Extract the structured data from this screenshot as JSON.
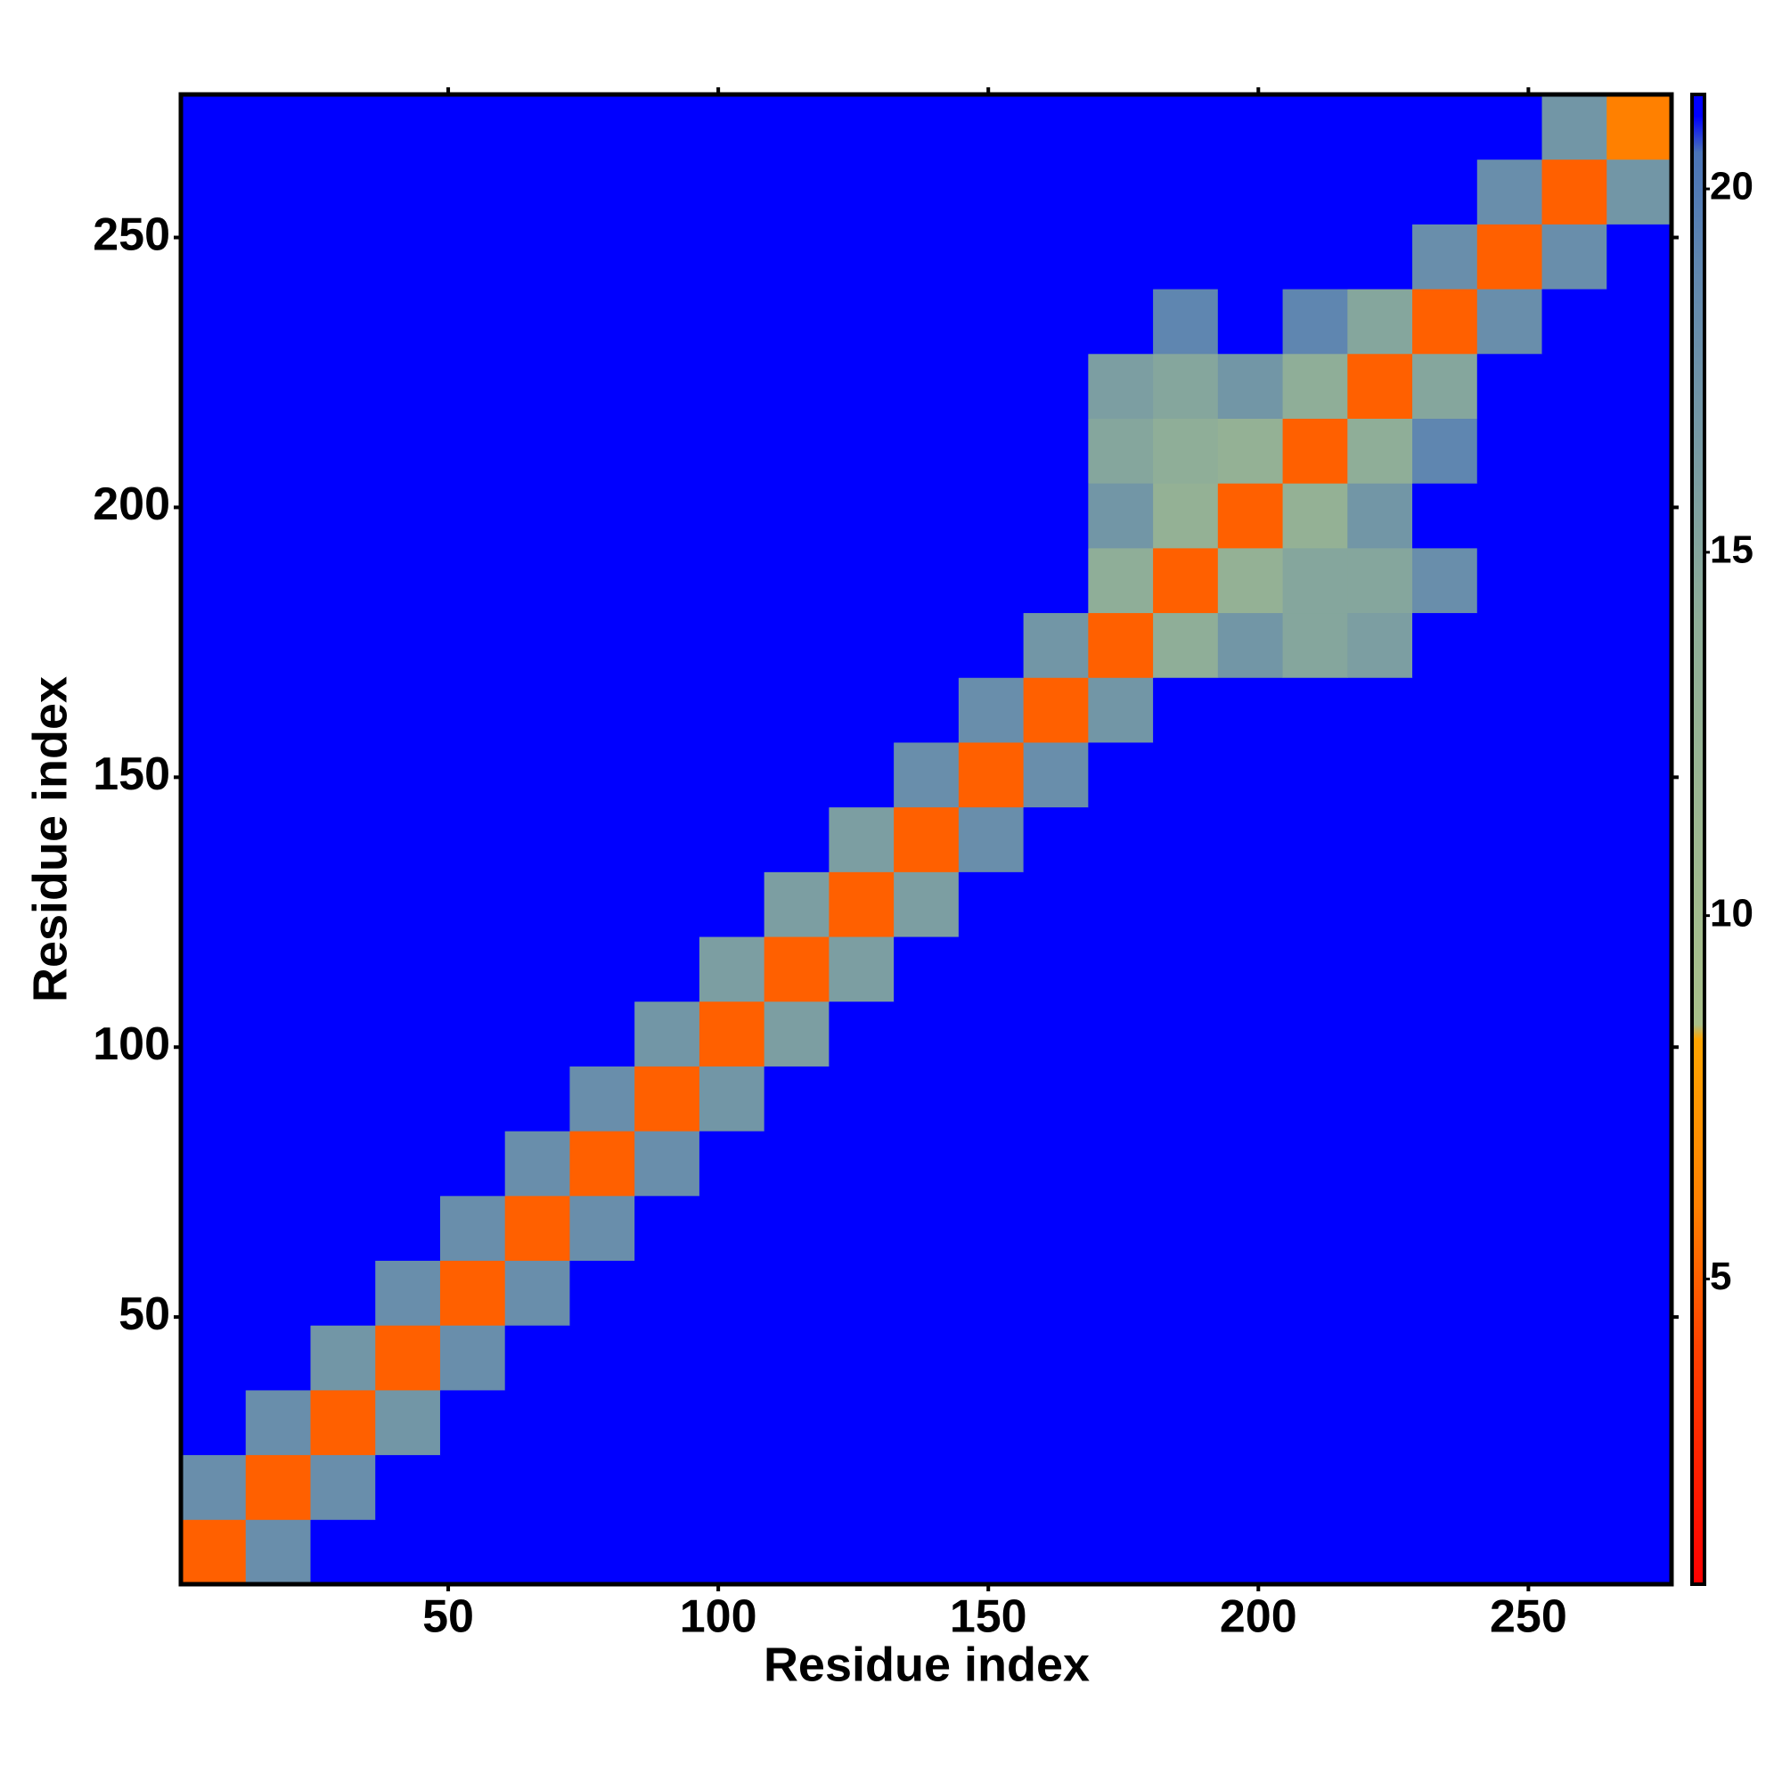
{
  "chart_data": {
    "type": "heatmap",
    "xlabel": "Residue index",
    "ylabel": "Residue index",
    "xlim": [
      0.5,
      276.5
    ],
    "ylim": [
      0.5,
      276.5
    ],
    "xticks": [
      50,
      100,
      150,
      200,
      250
    ],
    "yticks": [
      50,
      100,
      150,
      200,
      250
    ],
    "x_bins": [
      0.5,
      12.5,
      24.5,
      36.5,
      48.5,
      60.5,
      72.5,
      84.5,
      96.5,
      108.5,
      120.5,
      132.5,
      144.5,
      156.5,
      168.5,
      180.5,
      192.5,
      204.5,
      216.5,
      228.5,
      240.5,
      252.5,
      264.5,
      276.5
    ],
    "y_bins": [
      0.5,
      12.5,
      24.5,
      36.5,
      48.5,
      60.5,
      72.5,
      84.5,
      96.5,
      108.5,
      120.5,
      132.5,
      144.5,
      156.5,
      168.5,
      180.5,
      192.5,
      204.5,
      216.5,
      228.5,
      240.5,
      252.5,
      264.5,
      276.5
    ],
    "z": [
      [
        5,
        18,
        21,
        21,
        21,
        21,
        21,
        21,
        21,
        21,
        21,
        21,
        21,
        21,
        21,
        21,
        21,
        21,
        21,
        21,
        21,
        21,
        21
      ],
      [
        18,
        5,
        18,
        21,
        21,
        21,
        21,
        21,
        21,
        21,
        21,
        21,
        21,
        21,
        21,
        21,
        21,
        21,
        21,
        21,
        21,
        21,
        21
      ],
      [
        21,
        18,
        5,
        17,
        21,
        21,
        21,
        21,
        21,
        21,
        21,
        21,
        21,
        21,
        21,
        21,
        21,
        21,
        21,
        21,
        21,
        21,
        21
      ],
      [
        21,
        21,
        17,
        5,
        18,
        21,
        21,
        21,
        21,
        21,
        21,
        21,
        21,
        21,
        21,
        21,
        21,
        21,
        21,
        21,
        21,
        21,
        21
      ],
      [
        21,
        21,
        21,
        18,
        5,
        18,
        21,
        21,
        21,
        21,
        21,
        21,
        21,
        21,
        21,
        21,
        21,
        21,
        21,
        21,
        21,
        21,
        21
      ],
      [
        21,
        21,
        21,
        21,
        18,
        5,
        18,
        21,
        21,
        21,
        21,
        21,
        21,
        21,
        21,
        21,
        21,
        21,
        21,
        21,
        21,
        21,
        21
      ],
      [
        21,
        21,
        21,
        21,
        21,
        18,
        5,
        18,
        21,
        21,
        21,
        21,
        21,
        21,
        21,
        21,
        21,
        21,
        21,
        21,
        21,
        21,
        21
      ],
      [
        21,
        21,
        21,
        21,
        21,
        21,
        18,
        5,
        17,
        21,
        21,
        21,
        21,
        21,
        21,
        21,
        21,
        21,
        21,
        21,
        21,
        21,
        21
      ],
      [
        21,
        21,
        21,
        21,
        21,
        21,
        21,
        17,
        5,
        16,
        21,
        21,
        21,
        21,
        21,
        21,
        21,
        21,
        21,
        21,
        21,
        21,
        21
      ],
      [
        21,
        21,
        21,
        21,
        21,
        21,
        21,
        21,
        16,
        5,
        16,
        21,
        21,
        21,
        21,
        21,
        21,
        21,
        21,
        21,
        21,
        21,
        21
      ],
      [
        21,
        21,
        21,
        21,
        21,
        21,
        21,
        21,
        21,
        16,
        5,
        16,
        21,
        21,
        21,
        21,
        21,
        21,
        21,
        21,
        21,
        21,
        21
      ],
      [
        21,
        21,
        21,
        21,
        21,
        21,
        21,
        21,
        21,
        21,
        16,
        5,
        18,
        21,
        21,
        21,
        21,
        21,
        21,
        21,
        21,
        21,
        21
      ],
      [
        21,
        21,
        21,
        21,
        21,
        21,
        21,
        21,
        21,
        21,
        21,
        18,
        5,
        18,
        21,
        21,
        21,
        21,
        21,
        21,
        21,
        21,
        21
      ],
      [
        21,
        21,
        21,
        21,
        21,
        21,
        21,
        21,
        21,
        21,
        21,
        21,
        18,
        5,
        17,
        21,
        21,
        21,
        21,
        21,
        21,
        21,
        21
      ],
      [
        21,
        21,
        21,
        21,
        21,
        21,
        21,
        21,
        21,
        21,
        21,
        21,
        21,
        17,
        5,
        14,
        17,
        15,
        16,
        21,
        21,
        21,
        21
      ],
      [
        21,
        21,
        21,
        21,
        21,
        21,
        21,
        21,
        21,
        21,
        21,
        21,
        21,
        21,
        14,
        5,
        13,
        15,
        15,
        18,
        21,
        21,
        21
      ],
      [
        21,
        21,
        21,
        21,
        21,
        21,
        21,
        21,
        21,
        21,
        21,
        21,
        21,
        21,
        17,
        13,
        5,
        13,
        17,
        21,
        21,
        21,
        21
      ],
      [
        21,
        21,
        21,
        21,
        21,
        21,
        21,
        21,
        21,
        21,
        21,
        21,
        21,
        21,
        15,
        14,
        13,
        5,
        14,
        19,
        21,
        21,
        21
      ],
      [
        21,
        21,
        21,
        21,
        21,
        21,
        21,
        21,
        21,
        21,
        21,
        21,
        21,
        21,
        16,
        15,
        17,
        14,
        5,
        15,
        21,
        21,
        21
      ],
      [
        21,
        21,
        21,
        21,
        21,
        21,
        21,
        21,
        21,
        21,
        21,
        21,
        21,
        21,
        21,
        19,
        21,
        19,
        15,
        5,
        18,
        21,
        21
      ],
      [
        21,
        21,
        21,
        21,
        21,
        21,
        21,
        21,
        21,
        21,
        21,
        21,
        21,
        21,
        21,
        21,
        21,
        21,
        21,
        18,
        5,
        18,
        21
      ],
      [
        21,
        21,
        21,
        21,
        21,
        21,
        21,
        21,
        21,
        21,
        21,
        21,
        21,
        21,
        21,
        21,
        21,
        21,
        21,
        21,
        18,
        5,
        17
      ],
      [
        21,
        21,
        21,
        21,
        21,
        21,
        21,
        21,
        21,
        21,
        21,
        21,
        21,
        21,
        21,
        21,
        21,
        21,
        21,
        21,
        21,
        17,
        6
      ]
    ],
    "clim": [
      0.8,
      21.3
    ],
    "cticks": [
      5,
      10,
      15,
      20
    ],
    "colorscale": [
      [
        0.8,
        "#ff0000"
      ],
      [
        4,
        "#ff4000"
      ],
      [
        6,
        "#ff8000"
      ],
      [
        8.3,
        "#ffa500"
      ],
      [
        8.5,
        "#a9c08a"
      ],
      [
        14,
        "#8fae98"
      ],
      [
        19,
        "#5f86b0"
      ],
      [
        20.5,
        "#4a74b8"
      ],
      [
        21,
        "#0000ff"
      ],
      [
        21.3,
        "#0000ff"
      ]
    ]
  }
}
